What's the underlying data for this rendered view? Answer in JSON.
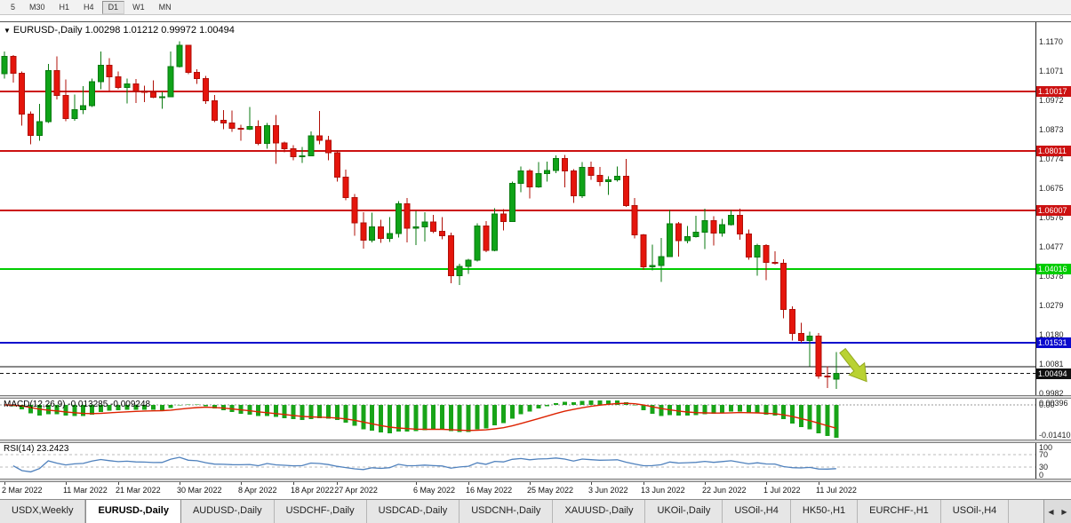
{
  "toolbar": {
    "timeframes": [
      "5",
      "M30",
      "H1",
      "H4",
      "D1",
      "W1",
      "MN"
    ],
    "active_timeframe": "D1"
  },
  "chart": {
    "title": {
      "dropdown_glyph": "▼",
      "symbol": "EURUSD-,Daily",
      "open": "1.00298",
      "high": "1.01212",
      "low": "0.99972",
      "close": "1.00494"
    },
    "macd_label": "MACD(12,26,9)",
    "macd_values": "-0.013285 -0.009248",
    "rsi_label": "RSI(14)",
    "rsi_value": "23.2423"
  },
  "chart_data": {
    "type": "candlestick",
    "symbol": "EURUSD",
    "timeframe": "Daily",
    "ylim": [
      0.9976,
      1.1236
    ],
    "last_ohlc": {
      "open": 1.00298,
      "high": 1.01212,
      "low": 0.99972,
      "close": 1.00494
    },
    "price_axis_ticks": [
      1.117,
      1.1071,
      1.0972,
      1.0873,
      1.0774,
      1.0675,
      1.0576,
      1.0477,
      1.0378,
      1.0279,
      1.018,
      1.0081,
      0.9982
    ],
    "hlines": [
      {
        "price": 1.10017,
        "label": "1.10017",
        "color": "#cc1111",
        "width": 2,
        "dashed": false
      },
      {
        "price": 1.08011,
        "label": "1.08011",
        "color": "#cc1111",
        "width": 2,
        "dashed": false
      },
      {
        "price": 1.06007,
        "label": "1.06007",
        "color": "#cc1111",
        "width": 2,
        "dashed": false
      },
      {
        "price": 1.04016,
        "label": "1.04016",
        "color": "#00cc00",
        "width": 2,
        "dashed": false
      },
      {
        "price": 1.01531,
        "label": "1.01531",
        "color": "#0a0acd",
        "width": 2,
        "dashed": false
      },
      {
        "price": 1.00716,
        "label": "",
        "color": "#111111",
        "width": 1,
        "dashed": false
      },
      {
        "price": 1.00494,
        "label": "1.00494",
        "color": "#111111",
        "width": 1,
        "dashed": true
      }
    ],
    "candles": [
      [
        1.1062,
        1.1137,
        1.1045,
        1.1121
      ],
      [
        1.1121,
        1.1125,
        1.1032,
        1.1063
      ],
      [
        1.1063,
        1.107,
        1.0886,
        1.0926
      ],
      [
        1.0926,
        1.0935,
        1.0823,
        1.0853
      ],
      [
        1.0853,
        1.096,
        1.0835,
        1.09
      ],
      [
        1.09,
        1.1095,
        1.0895,
        1.1073
      ],
      [
        1.1073,
        1.112,
        1.0975,
        1.0989
      ],
      [
        1.0989,
        1.1043,
        1.0901,
        1.0911
      ],
      [
        1.0911,
        1.0992,
        1.0903,
        1.0941
      ],
      [
        1.0941,
        1.102,
        1.0925,
        1.0954
      ],
      [
        1.0954,
        1.1046,
        1.095,
        1.1035
      ],
      [
        1.1035,
        1.1137,
        1.1009,
        1.109
      ],
      [
        1.109,
        1.1115,
        1.1003,
        1.1051
      ],
      [
        1.1051,
        1.1069,
        1.101,
        1.1015
      ],
      [
        1.1015,
        1.1046,
        1.0962,
        1.1028
      ],
      [
        1.1028,
        1.1044,
        1.0963,
        1.1004
      ],
      [
        1.1004,
        1.1021,
        1.0966,
        1.0999
      ],
      [
        1.0999,
        1.1039,
        1.0979,
        1.0983
      ],
      [
        1.0983,
        1.1,
        1.0944,
        1.0984
      ],
      [
        1.0984,
        1.1137,
        1.0982,
        1.1086
      ],
      [
        1.1086,
        1.1171,
        1.1083,
        1.1158
      ],
      [
        1.1158,
        1.116,
        1.106,
        1.1067
      ],
      [
        1.1067,
        1.1077,
        1.1027,
        1.1045
      ],
      [
        1.1045,
        1.1055,
        1.096,
        1.0971
      ],
      [
        1.0971,
        1.099,
        1.0898,
        1.0905
      ],
      [
        1.0905,
        1.0939,
        1.0874,
        1.0895
      ],
      [
        1.0895,
        1.0937,
        1.0865,
        1.0878
      ],
      [
        1.0878,
        1.089,
        1.0836,
        1.0875
      ],
      [
        1.0875,
        1.095,
        1.0872,
        1.0883
      ],
      [
        1.0883,
        1.0905,
        1.0821,
        1.0826
      ],
      [
        1.0826,
        1.0895,
        1.0809,
        1.0887
      ],
      [
        1.0887,
        1.0923,
        1.0757,
        1.0828
      ],
      [
        1.0828,
        1.0832,
        1.0796,
        1.0808
      ],
      [
        1.0808,
        1.0821,
        1.0769,
        1.0781
      ],
      [
        1.0781,
        1.0815,
        1.0761,
        1.0785
      ],
      [
        1.0785,
        1.0867,
        1.0783,
        1.0852
      ],
      [
        1.0852,
        1.0936,
        1.0824,
        1.0837
      ],
      [
        1.0837,
        1.0852,
        1.077,
        1.0795
      ],
      [
        1.0795,
        1.0804,
        1.0697,
        1.0712
      ],
      [
        1.0712,
        1.0738,
        1.0635,
        1.0644
      ],
      [
        1.0644,
        1.0655,
        1.0514,
        1.0558
      ],
      [
        1.0558,
        1.0594,
        1.0471,
        1.0499
      ],
      [
        1.0499,
        1.0593,
        1.0492,
        1.0545
      ],
      [
        1.0545,
        1.0568,
        1.049,
        1.0505
      ],
      [
        1.0505,
        1.0578,
        1.0494,
        1.0522
      ],
      [
        1.0522,
        1.0632,
        1.0508,
        1.0622
      ],
      [
        1.0622,
        1.0642,
        1.0492,
        1.054
      ],
      [
        1.054,
        1.0599,
        1.0483,
        1.0545
      ],
      [
        1.0545,
        1.0594,
        1.0495,
        1.0561
      ],
      [
        1.0561,
        1.0585,
        1.0524,
        1.053
      ],
      [
        1.053,
        1.0578,
        1.0503,
        1.0514
      ],
      [
        1.0514,
        1.0525,
        1.0354,
        1.0379
      ],
      [
        1.0379,
        1.042,
        1.0348,
        1.0411
      ],
      [
        1.0411,
        1.0437,
        1.0385,
        1.0432
      ],
      [
        1.0432,
        1.0557,
        1.0427,
        1.0548
      ],
      [
        1.0548,
        1.0564,
        1.0459,
        1.0465
      ],
      [
        1.0465,
        1.0607,
        1.0462,
        1.0588
      ],
      [
        1.0588,
        1.0604,
        1.0532,
        1.0563
      ],
      [
        1.0563,
        1.0697,
        1.0561,
        1.0691
      ],
      [
        1.0691,
        1.0748,
        1.0661,
        1.0734
      ],
      [
        1.0734,
        1.074,
        1.0641,
        1.068
      ],
      [
        1.068,
        1.0764,
        1.0677,
        1.0724
      ],
      [
        1.0724,
        1.0765,
        1.0697,
        1.0735
      ],
      [
        1.0735,
        1.0786,
        1.0726,
        1.0776
      ],
      [
        1.0776,
        1.0787,
        1.0678,
        1.0734
      ],
      [
        1.0734,
        1.0739,
        1.0626,
        1.065
      ],
      [
        1.065,
        1.0764,
        1.0642,
        1.0746
      ],
      [
        1.0746,
        1.0765,
        1.0704,
        1.0719
      ],
      [
        1.0719,
        1.0747,
        1.0682,
        1.0697
      ],
      [
        1.0697,
        1.0716,
        1.0652,
        1.0703
      ],
      [
        1.0703,
        1.0749,
        1.0698,
        1.0716
      ],
      [
        1.0716,
        1.0774,
        1.0612,
        1.0617
      ],
      [
        1.0617,
        1.0642,
        1.0506,
        1.0517
      ],
      [
        1.0517,
        1.052,
        1.0399,
        1.0409
      ],
      [
        1.0409,
        1.0485,
        1.0397,
        1.0414
      ],
      [
        1.0414,
        1.0507,
        1.0359,
        1.0444
      ],
      [
        1.0444,
        1.0601,
        1.0443,
        1.0555
      ],
      [
        1.0555,
        1.0561,
        1.0444,
        1.0498
      ],
      [
        1.0498,
        1.0547,
        1.0489,
        1.0511
      ],
      [
        1.0511,
        1.0582,
        1.0508,
        1.0527
      ],
      [
        1.0527,
        1.0606,
        1.0469,
        1.0566
      ],
      [
        1.0566,
        1.058,
        1.0482,
        1.0523
      ],
      [
        1.0523,
        1.0571,
        1.0512,
        1.0552
      ],
      [
        1.0552,
        1.0602,
        1.0549,
        1.0583
      ],
      [
        1.0583,
        1.0606,
        1.0501,
        1.052
      ],
      [
        1.052,
        1.0536,
        1.0434,
        1.0442
      ],
      [
        1.0442,
        1.0488,
        1.038,
        1.0482
      ],
      [
        1.0482,
        1.0486,
        1.0365,
        1.0425
      ],
      [
        1.0425,
        1.0462,
        1.0417,
        1.0422
      ],
      [
        1.0422,
        1.0435,
        1.0235,
        1.0265
      ],
      [
        1.0265,
        1.0276,
        1.0161,
        1.0184
      ],
      [
        1.0184,
        1.0221,
        1.0153,
        1.016
      ],
      [
        1.016,
        1.019,
        1.0073,
        1.0176
      ],
      [
        1.0176,
        1.0186,
        1.0032,
        1.004
      ],
      [
        1.004,
        1.0073,
        1.0,
        1.0037
      ],
      [
        1.00298,
        1.01212,
        0.99972,
        1.00494
      ]
    ],
    "date_labels": [
      {
        "index": 0,
        "label": "2 Mar 2022"
      },
      {
        "index": 7,
        "label": "11 Mar 2022"
      },
      {
        "index": 13,
        "label": "21 Mar 2022"
      },
      {
        "index": 20,
        "label": "30 Mar 2022"
      },
      {
        "index": 27,
        "label": "8 Apr 2022"
      },
      {
        "index": 33,
        "label": "18 Apr 2022"
      },
      {
        "index": 38,
        "label": "27 Apr 2022"
      },
      {
        "index": 47,
        "label": "6 May 2022"
      },
      {
        "index": 53,
        "label": "16 May 2022"
      },
      {
        "index": 60,
        "label": "25 May 2022"
      },
      {
        "index": 67,
        "label": "3 Jun 2022"
      },
      {
        "index": 73,
        "label": "13 Jun 2022"
      },
      {
        "index": 80,
        "label": "22 Jun 2022"
      },
      {
        "index": 87,
        "label": "1 Jul 2022"
      },
      {
        "index": 93,
        "label": "11 Jul 2022"
      }
    ],
    "indicators": {
      "macd": {
        "name": "MACD",
        "params": "12,26,9",
        "main_value": -0.013285,
        "signal_value": -0.009248,
        "axis_labels": [
          "0.00396",
          "0.00",
          "-0.01410"
        ],
        "histogram_color": "#18a418",
        "signal_color": "#dd2200"
      },
      "rsi": {
        "name": "RSI",
        "period": 14,
        "value": 23.2423,
        "levels": [
          70,
          30
        ],
        "axis_labels": [
          "100",
          "70",
          "30",
          "0"
        ],
        "line_color": "#4f81bd"
      }
    },
    "annotations": [
      {
        "type": "arrow",
        "x": 948,
        "y": 370,
        "rotation": 52,
        "color": "#b9d232",
        "edge_color": "#93a81f"
      }
    ],
    "colors": {
      "up": "#0fa318",
      "up_border": "#0a7a10",
      "down": "#e5150c",
      "down_border": "#b01008"
    }
  },
  "tabs": {
    "items": [
      "USDX,Weekly",
      "EURUSD-,Daily",
      "AUDUSD-,Daily",
      "USDCHF-,Daily",
      "USDCAD-,Daily",
      "USDCNH-,Daily",
      "XAUUSD-,Daily",
      "UKOil-,Daily",
      "USOil-,H4",
      "HK50-,H1",
      "EURCHF-,H1",
      "USOil-,H4"
    ],
    "active": "EURUSD-,Daily",
    "scroll_left": "◀",
    "scroll_right": "▶"
  }
}
